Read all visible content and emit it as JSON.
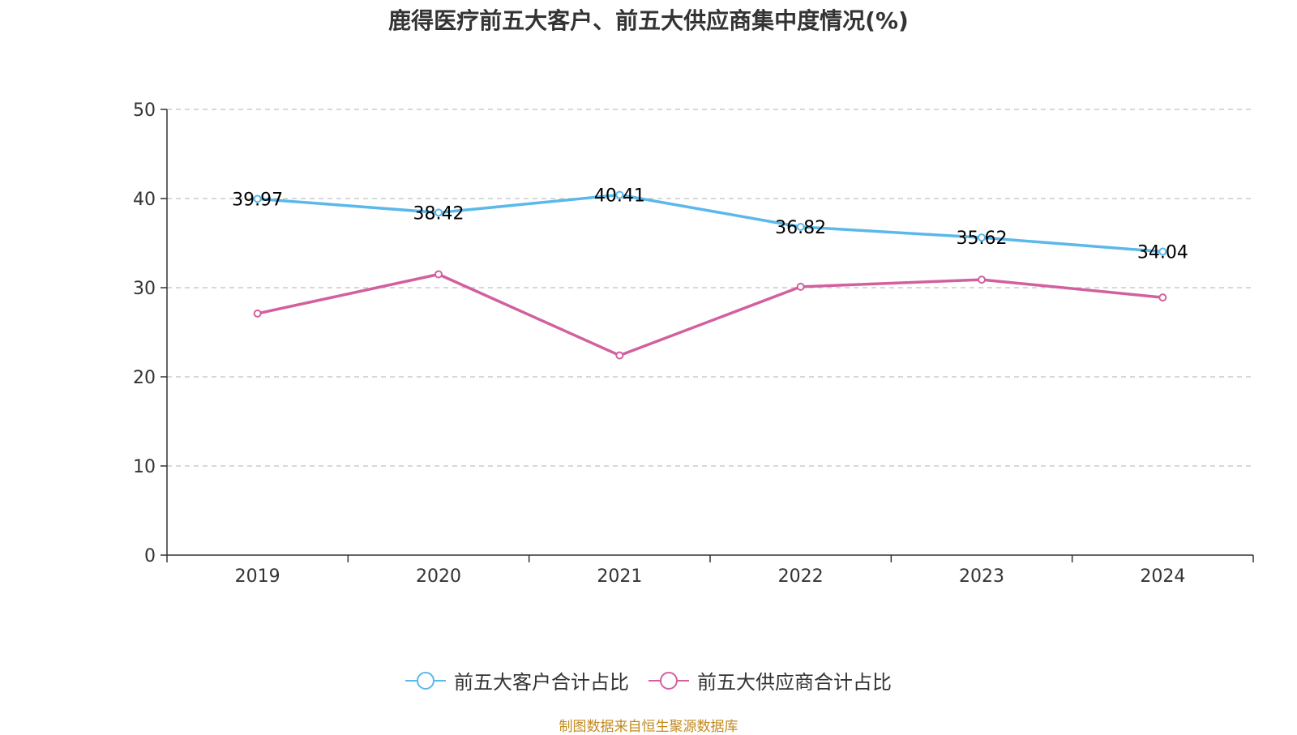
{
  "chart_data": {
    "type": "line",
    "title": "鹿得医疗前五大客户、前五大供应商集中度情况(%)",
    "categories": [
      "2019",
      "2020",
      "2021",
      "2022",
      "2023",
      "2024"
    ],
    "ylim": [
      0,
      50
    ],
    "yticks": [
      0,
      10,
      20,
      30,
      40,
      50
    ],
    "grid": true,
    "legend_position": "bottom",
    "series": [
      {
        "name": "前五大客户合计占比",
        "color": "#5ab8ea",
        "values": [
          39.97,
          38.42,
          40.41,
          36.82,
          35.62,
          34.04
        ],
        "labels": [
          "39.97",
          "38.42",
          "40.41",
          "36.82",
          "35.62",
          "34.04"
        ]
      },
      {
        "name": "前五大供应商合计占比",
        "color": "#d2609f",
        "values": [
          27.1,
          31.5,
          22.4,
          30.1,
          30.9,
          28.9
        ]
      }
    ]
  },
  "source": "制图数据来自恒生聚源数据库"
}
